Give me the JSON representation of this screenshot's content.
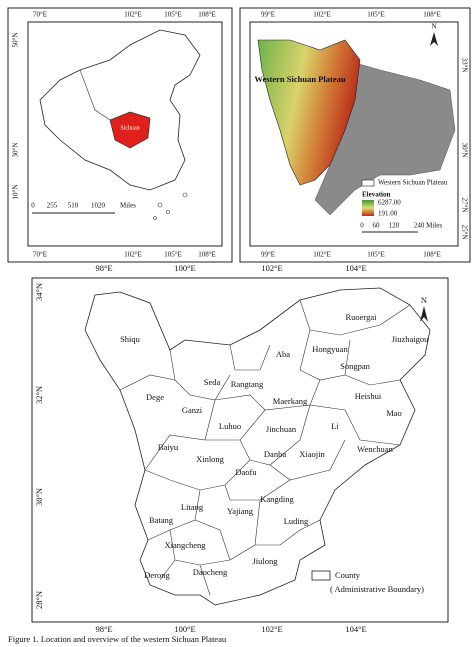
{
  "panel_a": {
    "top_ticks": [
      "70°E",
      "102°E",
      "105°E",
      "108°E"
    ],
    "left_ticks": [
      "50°N",
      "30°N",
      "10°N"
    ],
    "bottom_ticks": [
      "70°E",
      "102°E",
      "105°E",
      "108°E"
    ],
    "scale": [
      "0",
      "255",
      "510",
      "1020",
      "Miles"
    ],
    "region_label": "Sichuan"
  },
  "panel_b": {
    "top_ticks": [
      "99°E",
      "102°E",
      "105°E",
      "108°E"
    ],
    "right_ticks": [
      "33°N",
      "30°N",
      "27°N",
      "25°N"
    ],
    "bottom_ticks": [
      "99°E",
      "102°E",
      "105°E",
      "108°E"
    ],
    "north": "N",
    "region_label": "Western Sichuan Plateau",
    "legend": {
      "boundary": "Western Sichuan Plateau",
      "elevation_title": "Elevation",
      "high": "6287.00",
      "low": "191.00"
    },
    "scale": [
      "0",
      "60",
      "120",
      "240 Miles"
    ]
  },
  "panel_c": {
    "top_ticks": [
      "98°E",
      "100°E",
      "102°E",
      "104°E"
    ],
    "left_ticks": [
      "34°N",
      "32°N",
      "30°N",
      "28°N"
    ],
    "bottom_ticks": [
      "98°E",
      "100°E",
      "102°E",
      "104°E"
    ],
    "north": "N",
    "counties": [
      "Shiqu",
      "Dege",
      "Seda",
      "Rangtang",
      "Aba",
      "Ruoergai",
      "Jiuzhaigou",
      "Hongyuan",
      "Songpan",
      "Ganzi",
      "Luhuo",
      "Maerkang",
      "Heishui",
      "Mao",
      "Li",
      "Baiyu",
      "Jinchuan",
      "Wenchuan",
      "Xinlong",
      "Danba",
      "Xiaojin",
      "Daofu",
      "Kangding",
      "Litang",
      "Yajiang",
      "Batang",
      "Luding",
      "Xiangcheng",
      "Daocheng",
      "Jiulong",
      "Derong"
    ],
    "legend": {
      "label": "County",
      "note": "( Administrative Boundary)"
    }
  },
  "caption": "Figure 1. Location and overview of the western Sichuan Plateau"
}
